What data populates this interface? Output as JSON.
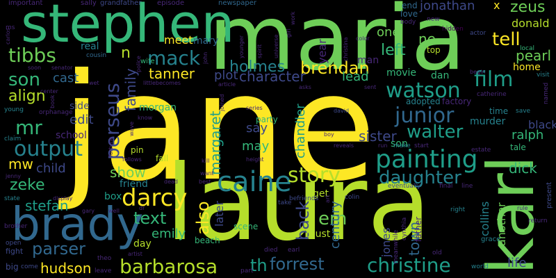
{
  "palette": {
    "background": "#000000",
    "yellow": "#fde725",
    "lime": "#b5de2b",
    "green": "#6ece58",
    "seagreen": "#35b779",
    "teal": "#1f9e89",
    "cyan": "#26828e",
    "blue": "#31688e",
    "indigo": "#3e4989",
    "purple": "#482878",
    "dark": "#440154"
  },
  "words": [
    {
      "text": "jane",
      "color": "yellow"
    },
    {
      "text": "maria",
      "color": "green"
    },
    {
      "text": "laura",
      "color": "lime"
    },
    {
      "text": "stephen",
      "color": "seagreen"
    },
    {
      "text": "karl",
      "color": "green"
    },
    {
      "text": "brady",
      "color": "blue"
    },
    {
      "text": "painting",
      "color": "teal"
    },
    {
      "text": "caine",
      "color": "cyan"
    },
    {
      "text": "darcy",
      "color": "yellow"
    },
    {
      "text": "watson",
      "color": "teal"
    },
    {
      "text": "story",
      "color": "lime"
    },
    {
      "text": "christine",
      "color": "teal"
    },
    {
      "text": "barbarosa",
      "color": "lime"
    },
    {
      "text": "perseus",
      "color": "indigo"
    },
    {
      "text": "junior",
      "color": "blue"
    },
    {
      "text": "output",
      "color": "cyan"
    },
    {
      "text": "daughter",
      "color": "cyan"
    },
    {
      "text": "walter",
      "color": "teal"
    },
    {
      "text": "tibbs",
      "color": "green"
    },
    {
      "text": "mack",
      "color": "cyan"
    },
    {
      "text": "film",
      "color": "teal"
    },
    {
      "text": "son",
      "color": "seagreen"
    },
    {
      "text": "mr",
      "color": "seagreen"
    },
    {
      "text": "forrest",
      "color": "blue"
    },
    {
      "text": "th",
      "color": "teal"
    },
    {
      "text": "text",
      "color": "seagreen"
    },
    {
      "text": "brendan",
      "color": "yellow"
    },
    {
      "text": "holmes",
      "color": "cyan"
    },
    {
      "text": "parser",
      "color": "blue"
    },
    {
      "text": "tell",
      "color": "yellow"
    },
    {
      "text": "left",
      "color": "seagreen"
    },
    {
      "text": "align",
      "color": "lime"
    },
    {
      "text": "zeke",
      "color": "seagreen"
    },
    {
      "text": "margaret",
      "color": "teal"
    },
    {
      "text": "character",
      "color": "indigo"
    },
    {
      "text": "also",
      "color": "yellow"
    },
    {
      "text": "hudson",
      "color": "yellow"
    },
    {
      "text": "em",
      "color": "green"
    },
    {
      "text": "stefan",
      "color": "teal"
    },
    {
      "text": "show",
      "color": "green"
    },
    {
      "text": "mw",
      "color": "yellow"
    },
    {
      "text": "emily",
      "color": "seagreen"
    },
    {
      "text": "back",
      "color": "indigo"
    },
    {
      "text": "zeus",
      "color": "green"
    },
    {
      "text": "tanner",
      "color": "yellow"
    },
    {
      "text": "pearl",
      "color": "green"
    },
    {
      "text": "sister",
      "color": "indigo"
    },
    {
      "text": "family",
      "color": "indigo"
    },
    {
      "text": "meet",
      "color": "yellow"
    },
    {
      "text": "plot",
      "color": "indigo"
    },
    {
      "text": "jonathan",
      "color": "indigo"
    },
    {
      "text": "one",
      "color": "green"
    },
    {
      "text": "ne",
      "color": "green"
    },
    {
      "text": "cast",
      "color": "blue"
    },
    {
      "text": "century",
      "color": "blue"
    },
    {
      "text": "collins",
      "color": "cyan"
    },
    {
      "text": "town",
      "color": "blue"
    },
    {
      "text": "lead",
      "color": "seagreen"
    },
    {
      "text": "child",
      "color": "indigo"
    },
    {
      "text": "dick",
      "color": "seagreen"
    },
    {
      "text": "ralph",
      "color": "seagreen"
    },
    {
      "text": "life",
      "color": "indigo"
    },
    {
      "text": "another",
      "color": "green"
    },
    {
      "text": "say",
      "color": "indigo"
    },
    {
      "text": "may",
      "color": "seagreen"
    },
    {
      "text": "chandler",
      "color": "teal"
    },
    {
      "text": "black",
      "color": "indigo"
    },
    {
      "text": "donald",
      "color": "lime"
    },
    {
      "text": "edit",
      "color": "indigo"
    },
    {
      "text": "n",
      "color": "lime"
    },
    {
      "text": "x",
      "color": "yellow"
    },
    {
      "text": "morgan",
      "color": "seagreen"
    },
    {
      "text": "box",
      "color": "teal"
    },
    {
      "text": "later",
      "color": "indigo"
    },
    {
      "text": "jones",
      "color": "indigo"
    },
    {
      "text": "day",
      "color": "lime"
    },
    {
      "text": "friend",
      "color": "cyan"
    },
    {
      "text": "must",
      "color": "lime"
    },
    {
      "text": "get",
      "color": "lime"
    },
    {
      "text": "year",
      "color": "purple"
    },
    {
      "text": "dan",
      "color": "seagreen"
    },
    {
      "text": "man",
      "color": "purple"
    },
    {
      "text": "movie",
      "color": "seagreen"
    },
    {
      "text": "home",
      "color": "yellow"
    },
    {
      "text": "murder",
      "color": "cyan"
    },
    {
      "text": "son",
      "color": "seagreen"
    },
    {
      "text": "fall",
      "color": "lime"
    },
    {
      "text": "scene",
      "color": "seagreen"
    },
    {
      "text": "beach",
      "color": "seagreen"
    },
    {
      "text": "party",
      "color": "seagreen"
    },
    {
      "text": "time",
      "color": "cyan"
    },
    {
      "text": "real",
      "color": "cyan"
    },
    {
      "text": "mary",
      "color": "blue"
    },
    {
      "text": "top",
      "color": "lime"
    },
    {
      "text": "factory",
      "color": "purple"
    },
    {
      "text": "adopted",
      "color": "cyan"
    },
    {
      "text": "side",
      "color": "indigo"
    },
    {
      "text": "school",
      "color": "purple"
    },
    {
      "text": "tale",
      "color": "seagreen"
    },
    {
      "text": "end",
      "color": "blue"
    },
    {
      "text": "love",
      "color": "blue"
    },
    {
      "text": "grace",
      "color": "cyan"
    },
    {
      "text": "father",
      "color": "purple"
    },
    {
      "text": "pin",
      "color": "lime"
    },
    {
      "text": "wife",
      "color": "seagreen"
    },
    {
      "text": "cousin",
      "color": "blue"
    },
    {
      "text": "sally",
      "color": "purple"
    },
    {
      "text": "grandfather",
      "color": "indigo"
    },
    {
      "text": "episode",
      "color": "purple"
    },
    {
      "text": "newspaper",
      "color": "blue"
    },
    {
      "text": "important",
      "color": "purple"
    },
    {
      "text": "body",
      "color": "purple"
    },
    {
      "text": "hidden",
      "color": "dark"
    },
    {
      "text": "actor",
      "color": "indigo"
    },
    {
      "text": "new",
      "color": "purple"
    },
    {
      "text": "local",
      "color": "seagreen"
    },
    {
      "text": "visit",
      "color": "cyan"
    },
    {
      "text": "named",
      "color": "purple"
    },
    {
      "text": "save",
      "color": "cyan"
    },
    {
      "text": "catherine",
      "color": "purple"
    },
    {
      "text": "estate",
      "color": "purple"
    },
    {
      "text": "make",
      "color": "cyan"
    },
    {
      "text": "start",
      "color": "purple"
    },
    {
      "text": "line",
      "color": "purple"
    },
    {
      "text": "final",
      "color": "purple"
    },
    {
      "text": "right",
      "color": "cyan"
    },
    {
      "text": "return",
      "color": "purple"
    },
    {
      "text": "present",
      "color": "indigo"
    },
    {
      "text": "world",
      "color": "cyan"
    },
    {
      "text": "old",
      "color": "purple"
    },
    {
      "text": "meanwhile",
      "color": "purple"
    },
    {
      "text": "cynthia",
      "color": "purple"
    },
    {
      "text": "eventually",
      "color": "indigo"
    },
    {
      "text": "colin",
      "color": "indigo"
    },
    {
      "text": "befriends",
      "color": "indigo"
    },
    {
      "text": "take",
      "color": "indigo"
    },
    {
      "text": "died",
      "color": "purple"
    },
    {
      "text": "earl",
      "color": "purple"
    },
    {
      "text": "part",
      "color": "purple"
    },
    {
      "text": "theo",
      "color": "purple"
    },
    {
      "text": "leave",
      "color": "purple"
    },
    {
      "text": "come",
      "color": "indigo"
    },
    {
      "text": "fight",
      "color": "indigo"
    },
    {
      "text": "big",
      "color": "indigo"
    },
    {
      "text": "brother",
      "color": "purple"
    },
    {
      "text": "open",
      "color": "indigo"
    },
    {
      "text": "state",
      "color": "cyan"
    },
    {
      "text": "claim",
      "color": "cyan"
    },
    {
      "text": "young",
      "color": "cyan"
    },
    {
      "text": "orphanage",
      "color": "purple"
    },
    {
      "text": "center",
      "color": "purple"
    },
    {
      "text": "senator",
      "color": "purple"
    },
    {
      "text": "soon",
      "color": "purple"
    },
    {
      "text": "wet",
      "color": "purple"
    },
    {
      "text": "book",
      "color": "purple"
    },
    {
      "text": "police",
      "color": "purple"
    },
    {
      "text": "color",
      "color": "purple"
    },
    {
      "text": "younger",
      "color": "purple"
    },
    {
      "text": "universe",
      "color": "purple"
    },
    {
      "text": "spirit",
      "color": "purple"
    },
    {
      "text": "girl",
      "color": "purple"
    },
    {
      "text": "work",
      "color": "purple"
    },
    {
      "text": "christina",
      "color": "purple"
    },
    {
      "text": "john",
      "color": "purple"
    },
    {
      "text": "littlebecomes",
      "color": "purple"
    },
    {
      "text": "article",
      "color": "purple"
    },
    {
      "text": "asks",
      "color": "purple"
    },
    {
      "text": "sent",
      "color": "purple"
    },
    {
      "text": "series",
      "color": "purple"
    },
    {
      "text": "joined",
      "color": "purple"
    },
    {
      "text": "david",
      "color": "indigo"
    },
    {
      "text": "boy",
      "color": "purple"
    },
    {
      "text": "reveals",
      "color": "purple"
    },
    {
      "text": "know",
      "color": "purple"
    },
    {
      "text": "wave",
      "color": "purple"
    },
    {
      "text": "follows",
      "color": "purple"
    },
    {
      "text": "fortune",
      "color": "purple"
    },
    {
      "text": "display",
      "color": "purple"
    },
    {
      "text": "gary",
      "color": "purple"
    },
    {
      "text": "well",
      "color": "purple"
    },
    {
      "text": "dead",
      "color": "purple"
    },
    {
      "text": "best",
      "color": "purple"
    },
    {
      "text": "want",
      "color": "purple"
    },
    {
      "text": "height",
      "color": "purple"
    },
    {
      "text": "artist",
      "color": "purple"
    },
    {
      "text": "dr",
      "color": "purple"
    },
    {
      "text": "carlos",
      "color": "purple"
    },
    {
      "text": "ms",
      "color": "purple"
    },
    {
      "text": "begin",
      "color": "purple"
    },
    {
      "text": "jenny",
      "color": "purple"
    },
    {
      "text": "run",
      "color": "purple"
    },
    {
      "text": "art",
      "color": "purple"
    },
    {
      "text": "rule",
      "color": "purple"
    },
    {
      "text": "kill",
      "color": "purple"
    }
  ]
}
